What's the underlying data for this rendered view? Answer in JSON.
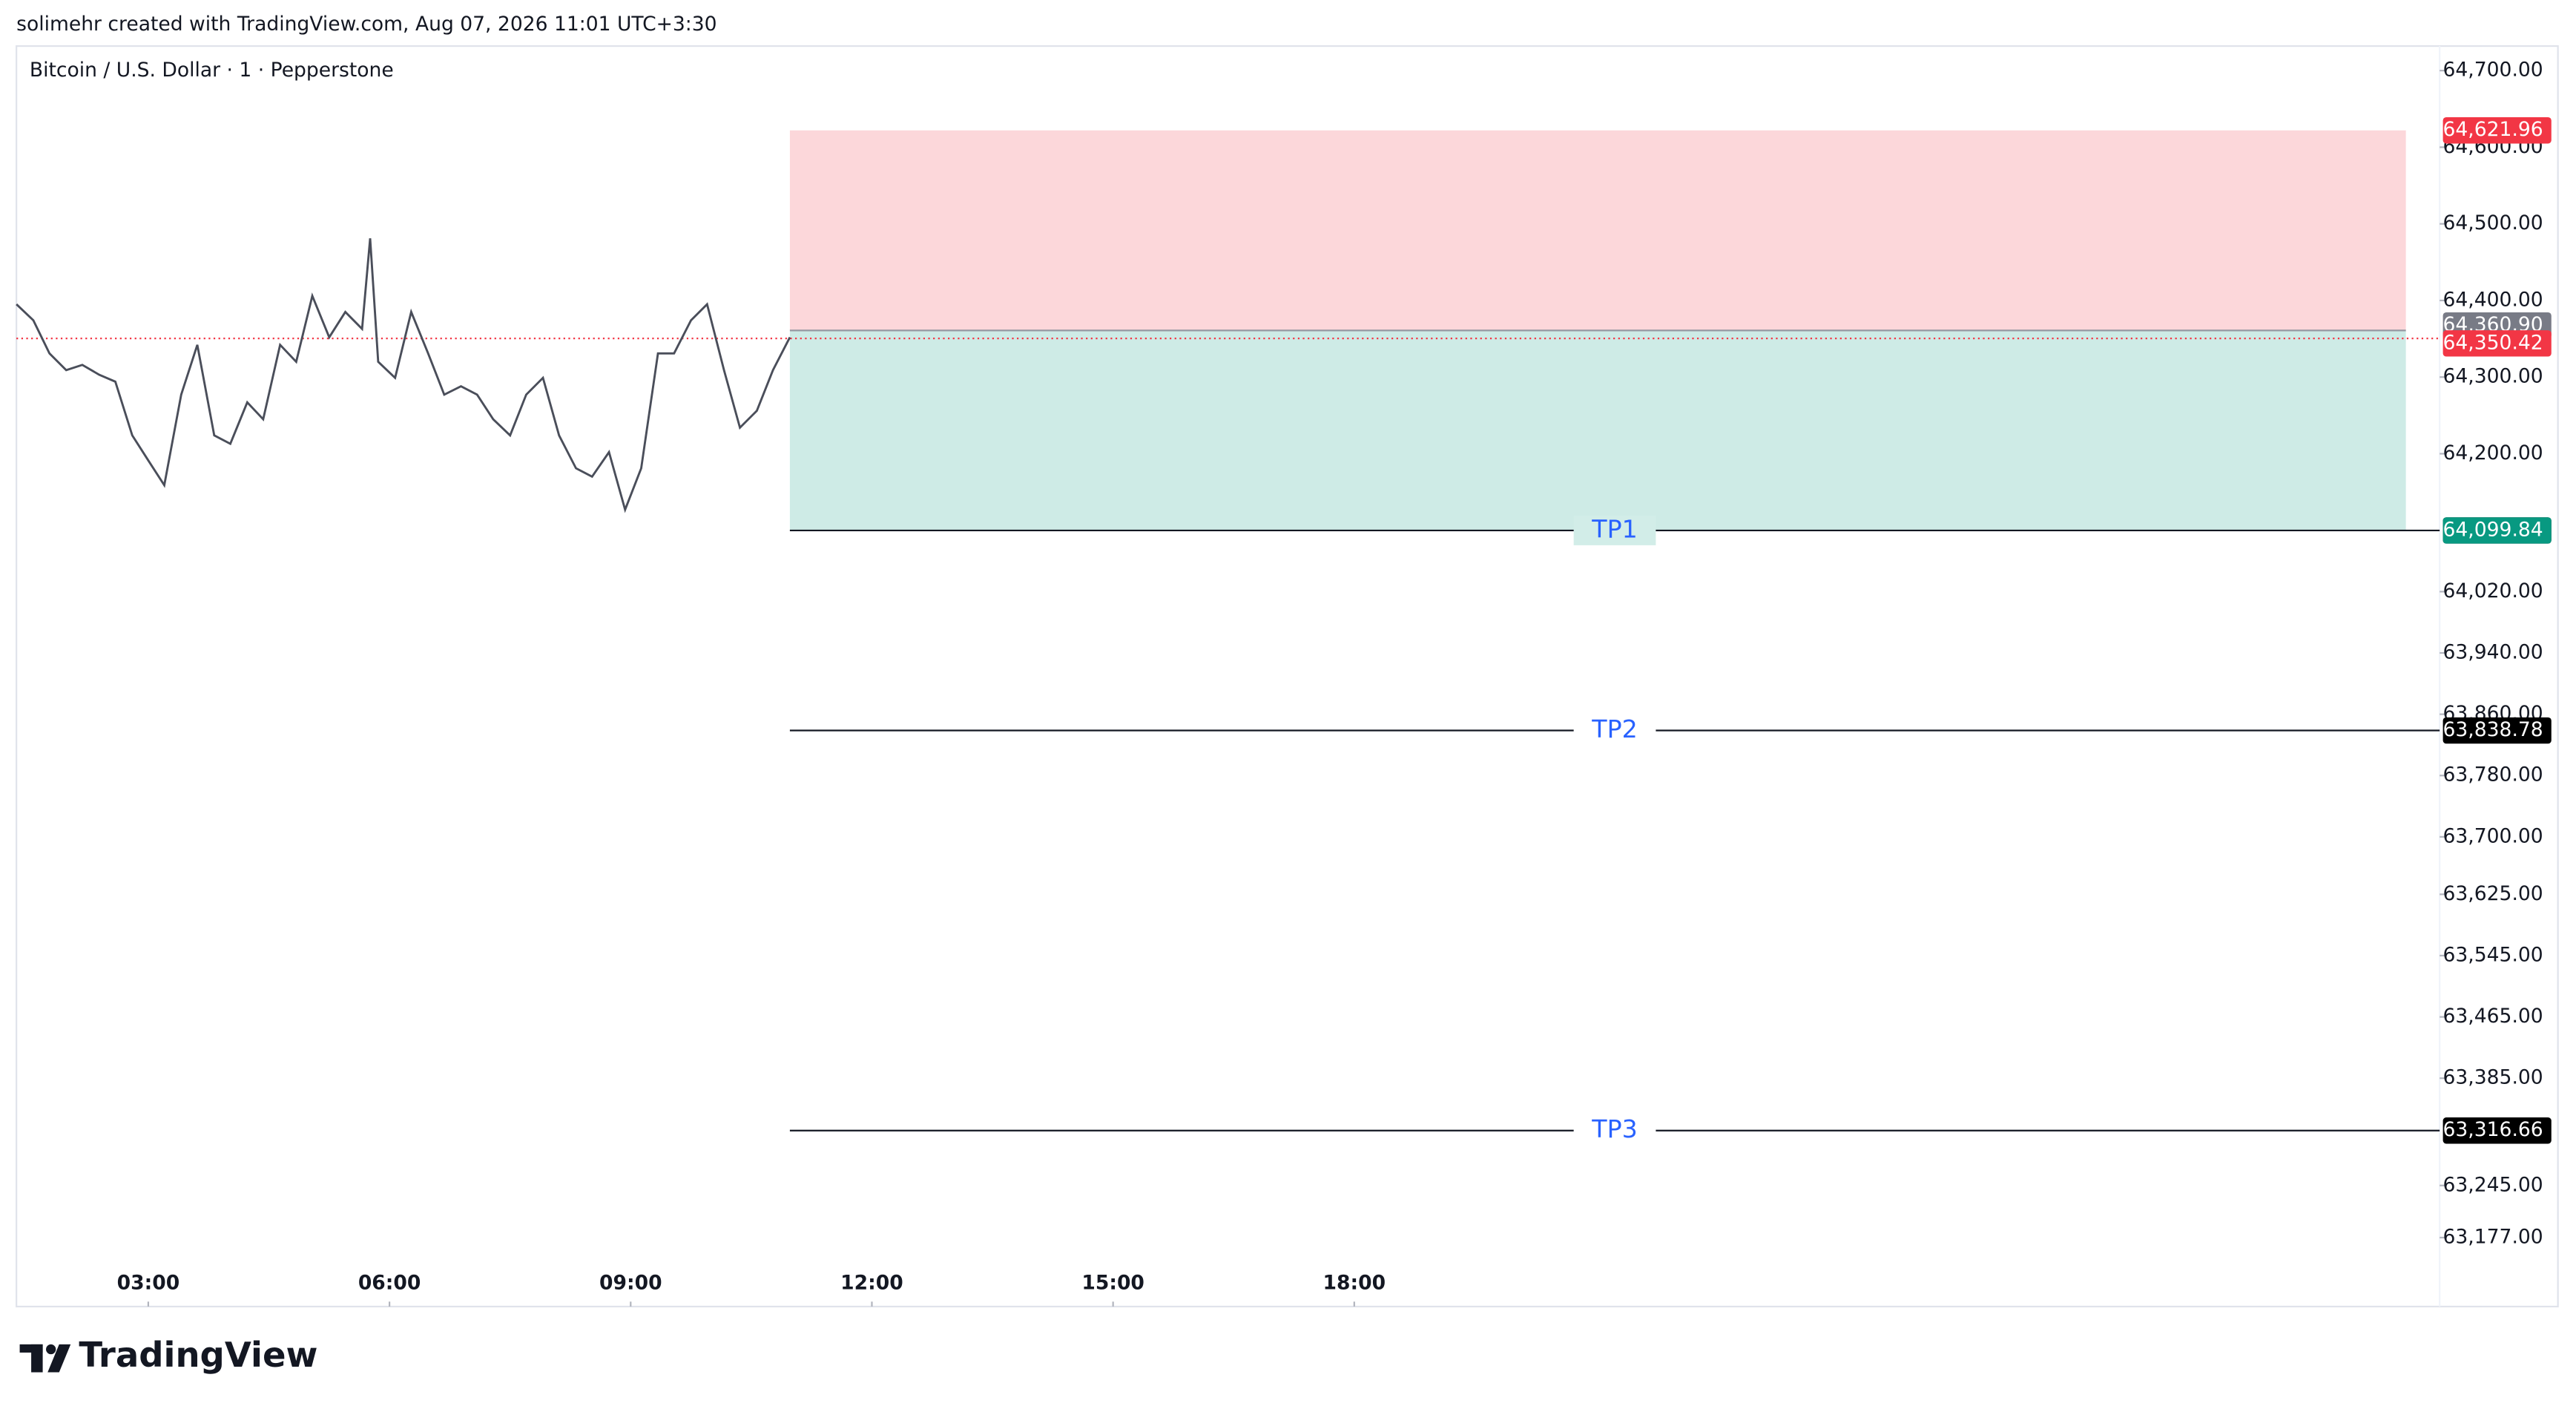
{
  "header": {
    "text": "solimehr created with TradingView.com, Aug 07, 2026 11:01 UTC+3:30"
  },
  "chart_data": {
    "type": "line",
    "title": "Bitcoin / U.S. Dollar · 1 · Pepperstone",
    "color": "#4a4e5a",
    "x": [
      1.36,
      1.57,
      1.77,
      1.98,
      2.18,
      2.39,
      2.59,
      2.8,
      3,
      3.2,
      3.41,
      3.61,
      3.82,
      4.02,
      4.23,
      4.43,
      4.64,
      4.84,
      5.04,
      5.25,
      5.45,
      5.66,
      5.76,
      5.86,
      6.07,
      6.27,
      6.48,
      6.68,
      6.89,
      7.09,
      7.29,
      7.5,
      7.7,
      7.91,
      8.11,
      8.32,
      8.52,
      8.73,
      8.93,
      9.13,
      9.34,
      9.54,
      9.75,
      9.95,
      10.16,
      10.36,
      10.57,
      10.77,
      10.98
    ],
    "values": [
      64395,
      64374,
      64331,
      64309,
      64316,
      64303,
      64294,
      64224,
      64191,
      64159,
      64277,
      64342,
      64224,
      64213,
      64267,
      64245,
      64342,
      64320,
      64406,
      64352,
      64385,
      64363,
      64481,
      64320,
      64299,
      64385,
      64331,
      64277,
      64288,
      64277,
      64245,
      64224,
      64277,
      64299,
      64224,
      64181,
      64170,
      64202,
      64127,
      64181,
      64331,
      64331,
      64374,
      64395,
      64309,
      64234,
      64256,
      64309,
      64352
    ],
    "xlim": [
      1.36,
      31.5
    ],
    "xticks": [
      {
        "value": 3,
        "label": "03:00"
      },
      {
        "value": 6,
        "label": "06:00"
      },
      {
        "value": 9,
        "label": "09:00"
      },
      {
        "value": 12,
        "label": "12:00"
      },
      {
        "value": 15,
        "label": "15:00"
      },
      {
        "value": 18,
        "label": "18:00"
      }
    ],
    "ylim": [
      63087,
      64732
    ],
    "yticks": [
      {
        "value": 64700,
        "label": "64,700.00"
      },
      {
        "value": 64600,
        "label": "64,600.00"
      },
      {
        "value": 64500,
        "label": "64,500.00"
      },
      {
        "value": 64400,
        "label": "64,400.00"
      },
      {
        "value": 64300,
        "label": "64,300.00"
      },
      {
        "value": 64200,
        "label": "64,200.00"
      },
      {
        "value": 64020,
        "label": "64,020.00"
      },
      {
        "value": 63940,
        "label": "63,940.00"
      },
      {
        "value": 63860,
        "label": "63,860.00"
      },
      {
        "value": 63780,
        "label": "63,780.00"
      },
      {
        "value": 63700,
        "label": "63,700.00"
      },
      {
        "value": 63625,
        "label": "63,625.00"
      },
      {
        "value": 63545,
        "label": "63,545.00"
      },
      {
        "value": 63465,
        "label": "63,465.00"
      },
      {
        "value": 63385,
        "label": "63,385.00"
      },
      {
        "value": 63245,
        "label": "63,245.00"
      },
      {
        "value": 63177,
        "label": "63,177.00"
      }
    ],
    "levels": [
      {
        "value": 64621.96,
        "label": "64,621.96",
        "color": "#f23645"
      },
      {
        "value": 64360.9,
        "label": "64,360.90",
        "color": "#787b86"
      },
      {
        "value": 64350.42,
        "label": "64,350.42",
        "color": "#f23645"
      },
      {
        "value": 64099.84,
        "label": "64,099.84",
        "color": "#089981"
      }
    ],
    "position_x": [
      10.98,
      31.08
    ],
    "targets": [
      {
        "name": "TP1",
        "value": 64099.84,
        "label": "64,099.84"
      },
      {
        "name": "TP2",
        "value": 63838.78,
        "label": "63,838.78"
      },
      {
        "name": "TP3",
        "value": 63316.66,
        "label": "63,316.66"
      }
    ]
  },
  "footer": {
    "logo": "TradingView"
  }
}
